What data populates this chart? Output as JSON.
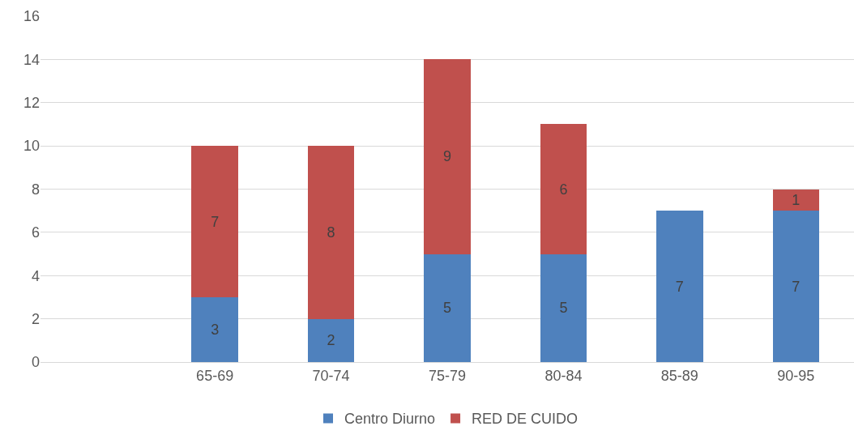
{
  "chart_data": {
    "type": "bar",
    "stacked": true,
    "categories": [
      null,
      "65-69",
      "70-74",
      "75-79",
      "80-84",
      "85-89",
      "90-95"
    ],
    "series": [
      {
        "name": "Centro Diurno",
        "color": "#4f81bd",
        "values": [
          null,
          3,
          2,
          5,
          5,
          7,
          7
        ]
      },
      {
        "name": "RED DE CUIDO",
        "color": "#c0504d",
        "values": [
          null,
          7,
          8,
          9,
          6,
          null,
          1
        ]
      }
    ],
    "ylim": [
      0,
      16
    ],
    "yticks": [
      0,
      2,
      4,
      6,
      8,
      10,
      12,
      14,
      16
    ],
    "grid": "y",
    "legend": "bottom",
    "data_labels": true
  }
}
